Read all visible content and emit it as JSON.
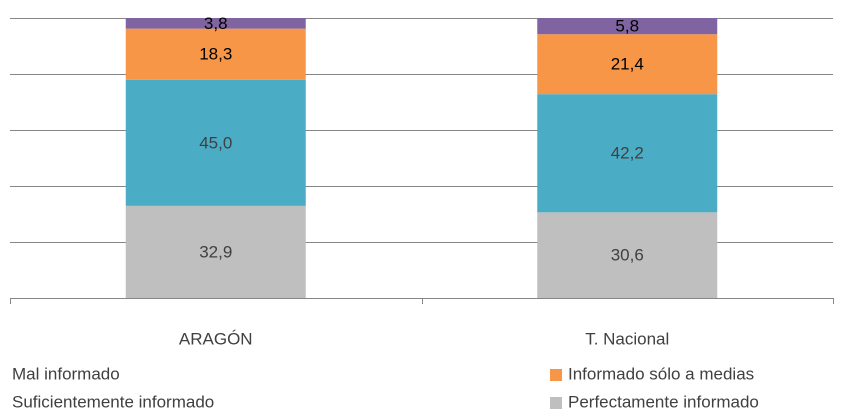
{
  "chart_data": {
    "type": "stacked_bar",
    "categories": [
      "ARAGÓN",
      "T. Nacional"
    ],
    "series": [
      {
        "name": "Perfectamente informado",
        "color": "#bfbfbf",
        "values": [
          32.9,
          30.6
        ],
        "value_labels": [
          "32,9",
          "30,6"
        ]
      },
      {
        "name": "Suficientemente informado",
        "color": "#4bacc6",
        "values": [
          45.0,
          42.2
        ],
        "value_labels": [
          "45,0",
          "42,2"
        ]
      },
      {
        "name": "Informado sólo a medias",
        "color": "#f79646",
        "values": [
          18.3,
          21.4
        ],
        "value_labels": [
          "18,3",
          "21,4"
        ]
      },
      {
        "name": "Mal informado",
        "color": "#8064a2",
        "values": [
          3.8,
          5.8
        ],
        "value_labels": [
          "3,8",
          "5,8"
        ]
      }
    ],
    "ylim": [
      0,
      100
    ],
    "yticks": [
      0,
      20,
      40,
      60,
      80,
      100
    ],
    "grid": true
  }
}
